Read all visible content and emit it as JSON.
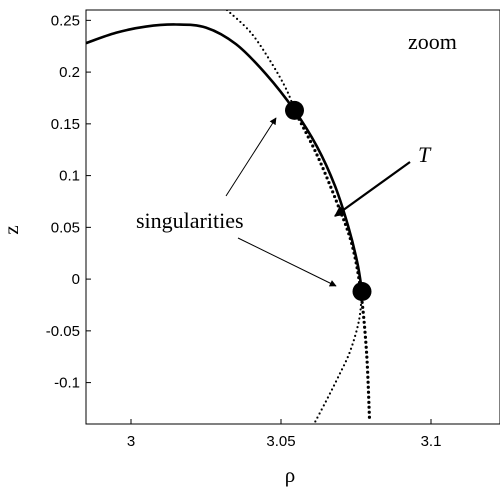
{
  "chart_data": {
    "type": "line",
    "title": "",
    "xlabel": "ρ",
    "ylabel": "z",
    "xlim": [
      2.985,
      3.123
    ],
    "ylim": [
      -0.14,
      0.26
    ],
    "xticks": [
      3,
      3.05,
      3.1
    ],
    "yticks": [
      0.25,
      0.2,
      0.15,
      0.1,
      0.05,
      0,
      -0.05,
      -0.1
    ],
    "xtick_labels": [
      "3",
      "3.05",
      "3.1"
    ],
    "ytick_labels": [
      "0.25",
      "0.2",
      "0.15",
      "0.1",
      "0.05",
      "0",
      "-0.05",
      "-0.1"
    ],
    "grid": false,
    "series": [
      {
        "style": "solid",
        "x": [
          2.985,
          2.995,
          3.005,
          3.015,
          3.025,
          3.035,
          3.045,
          3.0545,
          3.062,
          3.068,
          3.0725,
          3.0755,
          3.077
        ],
        "y": [
          0.228,
          0.238,
          0.244,
          0.246,
          0.243,
          0.227,
          0.198,
          0.163,
          0.128,
          0.09,
          0.05,
          0.015,
          -0.012
        ]
      },
      {
        "style": "dotted-coarse",
        "x": [
          3.0545,
          3.062,
          3.0685,
          3.0735,
          3.0765,
          3.0785,
          3.0795
        ],
        "y": [
          0.163,
          0.12,
          0.075,
          0.035,
          -0.01,
          -0.07,
          -0.135
        ]
      },
      {
        "style": "dotted-fine",
        "x": [
          3.032,
          3.04,
          3.047,
          3.052,
          3.0545
        ],
        "y": [
          0.26,
          0.238,
          0.208,
          0.182,
          0.163
        ]
      },
      {
        "style": "dotted-fine",
        "x": [
          3.077,
          3.076,
          3.073,
          3.069,
          3.065,
          3.061
        ],
        "y": [
          -0.012,
          -0.04,
          -0.07,
          -0.095,
          -0.118,
          -0.14
        ]
      }
    ],
    "markers": [
      {
        "x": 3.0545,
        "y": 0.163
      },
      {
        "x": 3.077,
        "y": -0.012
      }
    ],
    "annotations": {
      "zoom": "zoom",
      "singularities": "singularities",
      "T": "T"
    }
  }
}
